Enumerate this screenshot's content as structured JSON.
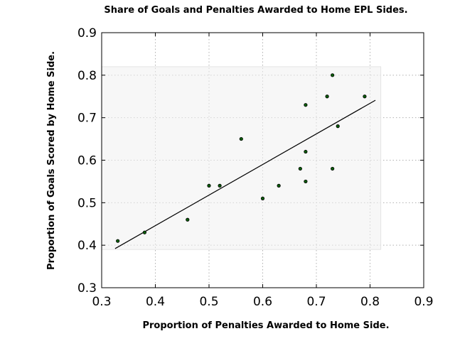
{
  "chart_data": {
    "type": "scatter",
    "title": "Share of Goals and Penalties Awarded to Home EPL Sides.",
    "xlabel": "Proportion of Penalties Awarded to Home Side.",
    "ylabel": "Proportion of Goals Scored by Home Side.",
    "xlim": [
      0.3,
      0.9
    ],
    "ylim": [
      0.3,
      0.9
    ],
    "xticks": [
      "0.3",
      "0.4",
      "0.5",
      "0.6",
      "0.7",
      "0.8",
      "0.9"
    ],
    "yticks": [
      "0.3",
      "0.4",
      "0.5",
      "0.6",
      "0.7",
      "0.8",
      "0.9"
    ],
    "grid": true,
    "shaded_region": {
      "x": [
        0.3,
        0.82
      ],
      "y": [
        0.39,
        0.82
      ]
    },
    "points": [
      {
        "x": 0.33,
        "y": 0.41
      },
      {
        "x": 0.38,
        "y": 0.43
      },
      {
        "x": 0.46,
        "y": 0.46
      },
      {
        "x": 0.5,
        "y": 0.54
      },
      {
        "x": 0.52,
        "y": 0.54
      },
      {
        "x": 0.56,
        "y": 0.65
      },
      {
        "x": 0.6,
        "y": 0.51
      },
      {
        "x": 0.63,
        "y": 0.54
      },
      {
        "x": 0.67,
        "y": 0.58
      },
      {
        "x": 0.68,
        "y": 0.55
      },
      {
        "x": 0.68,
        "y": 0.62
      },
      {
        "x": 0.68,
        "y": 0.73
      },
      {
        "x": 0.72,
        "y": 0.75
      },
      {
        "x": 0.73,
        "y": 0.8
      },
      {
        "x": 0.73,
        "y": 0.58
      },
      {
        "x": 0.74,
        "y": 0.68
      },
      {
        "x": 0.79,
        "y": 0.75
      }
    ],
    "fit_line": {
      "x": [
        0.325,
        0.81
      ],
      "y": [
        0.392,
        0.741
      ]
    },
    "colors": {
      "point": "#0a5c0a",
      "line": "#000000",
      "grid": "#b0b0b0"
    }
  }
}
